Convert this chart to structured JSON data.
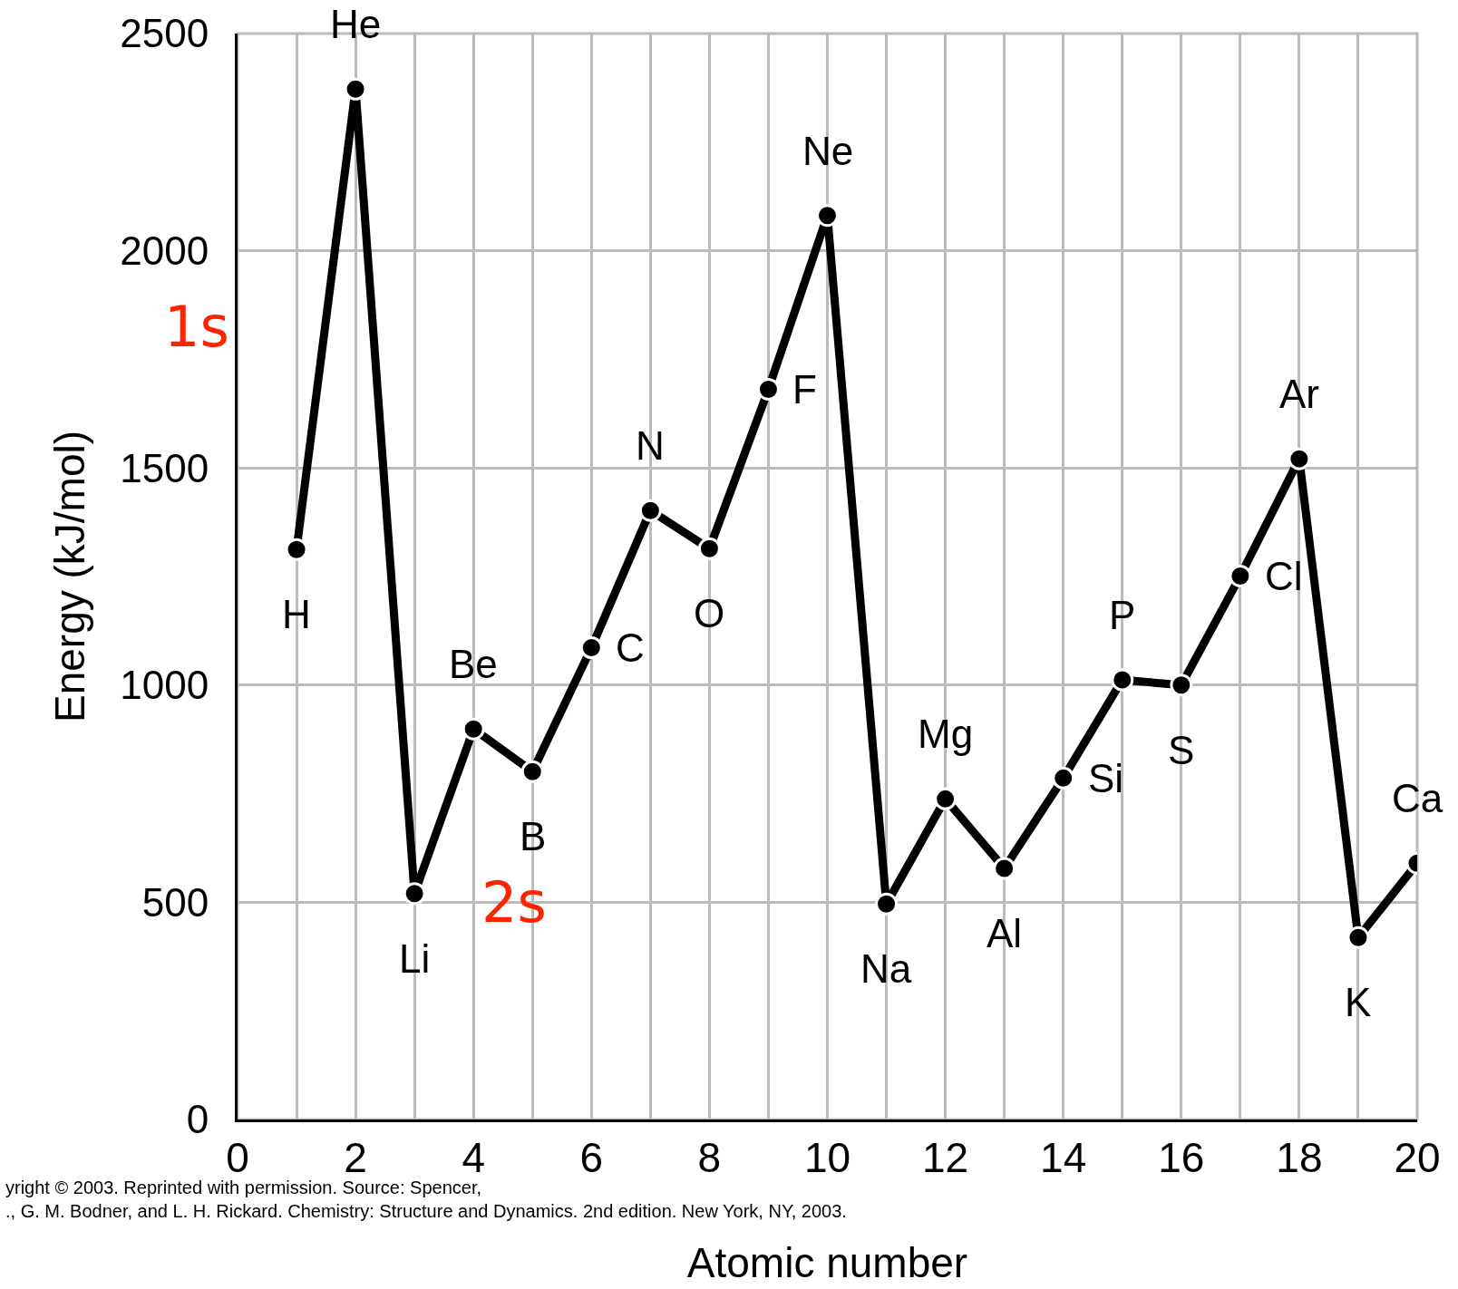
{
  "chart_data": {
    "type": "line",
    "xlabel": "Atomic number",
    "ylabel": "Energy (kJ/mol)",
    "x": [
      1,
      2,
      3,
      4,
      5,
      6,
      7,
      8,
      9,
      10,
      11,
      12,
      13,
      14,
      15,
      16,
      17,
      18,
      19,
      20
    ],
    "values": [
      1312,
      2372,
      520,
      899,
      801,
      1086,
      1402,
      1314,
      1681,
      2081,
      496,
      738,
      578,
      786,
      1012,
      1000,
      1251,
      1521,
      419,
      590
    ],
    "color": "#000000",
    "marker": "circle",
    "line_style": "solid",
    "grid": true,
    "legend": false,
    "xlim": [
      0,
      20
    ],
    "ylim": [
      0,
      2500
    ],
    "xticks": [
      0,
      {
        "value": 1,
        "label": null
      },
      2,
      {
        "value": 3,
        "label": null
      },
      4,
      {
        "value": 5,
        "label": null
      },
      6,
      {
        "value": 7,
        "label": null
      },
      8,
      {
        "value": 9,
        "label": null
      },
      10,
      {
        "value": 11,
        "label": null
      },
      12,
      {
        "value": 13,
        "label": null
      },
      14,
      {
        "value": 15,
        "label": null
      },
      16,
      {
        "value": 17,
        "label": null
      },
      18,
      {
        "value": 19,
        "label": null
      },
      20
    ],
    "yticks": [
      0,
      500,
      1000,
      1500,
      2000,
      2500
    ],
    "annotations": [
      {
        "text": "H",
        "x": 1,
        "y": 1312
      },
      {
        "text": "He",
        "x": 2,
        "y": 2372
      },
      {
        "text": "Li",
        "x": 3,
        "y": 520
      },
      {
        "text": "Be",
        "x": 4,
        "y": 899
      },
      {
        "text": "B",
        "x": 5,
        "y": 801
      },
      {
        "text": "C",
        "x": 6,
        "y": 1086
      },
      {
        "text": "N",
        "x": 7,
        "y": 1402
      },
      {
        "text": "O",
        "x": 8,
        "y": 1314
      },
      {
        "text": "F",
        "x": 9,
        "y": 1681
      },
      {
        "text": "Ne",
        "x": 10,
        "y": 2081
      },
      {
        "text": "Na",
        "x": 11,
        "y": 496
      },
      {
        "text": "Mg",
        "x": 12,
        "y": 738
      },
      {
        "text": "Al",
        "x": 13,
        "y": 578
      },
      {
        "text": "Si",
        "x": 14,
        "y": 786
      },
      {
        "text": "P",
        "x": 15,
        "y": 1012
      },
      {
        "text": "S",
        "x": 16,
        "y": 1000
      },
      {
        "text": "Cl",
        "x": 17,
        "y": 1251
      },
      {
        "text": "Ar",
        "x": 18,
        "y": 1521
      },
      {
        "text": "K",
        "x": 19,
        "y": 419
      },
      {
        "text": "Ca",
        "x": 20,
        "y": 590
      },
      "1s",
      {
        "text": "2s",
        "x": 3,
        "y": 520
      },
      "yright © 2003. Reprinted with permission. Source: Spencer,\n., G. M. Bodner, and L. H. Rickard. Chemistry: Structure and Dynamics. 2nd edition. New York, NY, 2003."
    ]
  }
}
